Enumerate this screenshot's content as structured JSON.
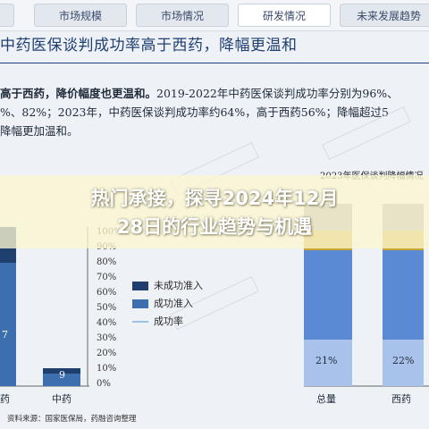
{
  "tabs": [
    {
      "label": "",
      "active": false
    },
    {
      "label": "市场规模",
      "active": false
    },
    {
      "label": "市场情况",
      "active": false
    },
    {
      "label": "研发情况",
      "active": true
    },
    {
      "label": "未来发展趋势",
      "active": false
    }
  ],
  "heading": "中药医保谈判成功率高于西药，降幅更温和",
  "body": {
    "line1_bold": "高于西药，降价幅度也更温和。",
    "line1_rest": "2019-2022年中药医保谈判成功率分别为96%、",
    "line2": "%、82%；2023年，中药医保谈判成功率约64%，高于西药56%；降幅超过5",
    "line3": "降幅更加温和。"
  },
  "overlay": {
    "line1": "热门承接，探寻2024年12月",
    "line2": "28日的行业趋势与机遇"
  },
  "left_chart": {
    "y_ticks": [
      "100%",
      "90%",
      "80%",
      "70%",
      "60%",
      "50%",
      "40%",
      "30%",
      "20%",
      "10%",
      "0%"
    ],
    "legend": [
      {
        "label": "未成功准入",
        "color": "#1f3f6e"
      },
      {
        "label": "成功准入",
        "color": "#3d6fae"
      },
      {
        "label": "成功率",
        "color": "#9cc3e6"
      }
    ],
    "bar_labels": [
      "7",
      "9"
    ],
    "categories": [
      "药",
      "中药"
    ]
  },
  "right_chart": {
    "title": "2023年医保谈判降幅情况",
    "bar_labels": [
      "21%",
      "22%"
    ],
    "categories": [
      "总量",
      "西药"
    ],
    "colors": {
      "top": "#9aa0a6",
      "mid": "#c8a531",
      "main": "#5b8ad4"
    }
  },
  "source": "资料来源：国家医保局，药融咨询整理"
}
